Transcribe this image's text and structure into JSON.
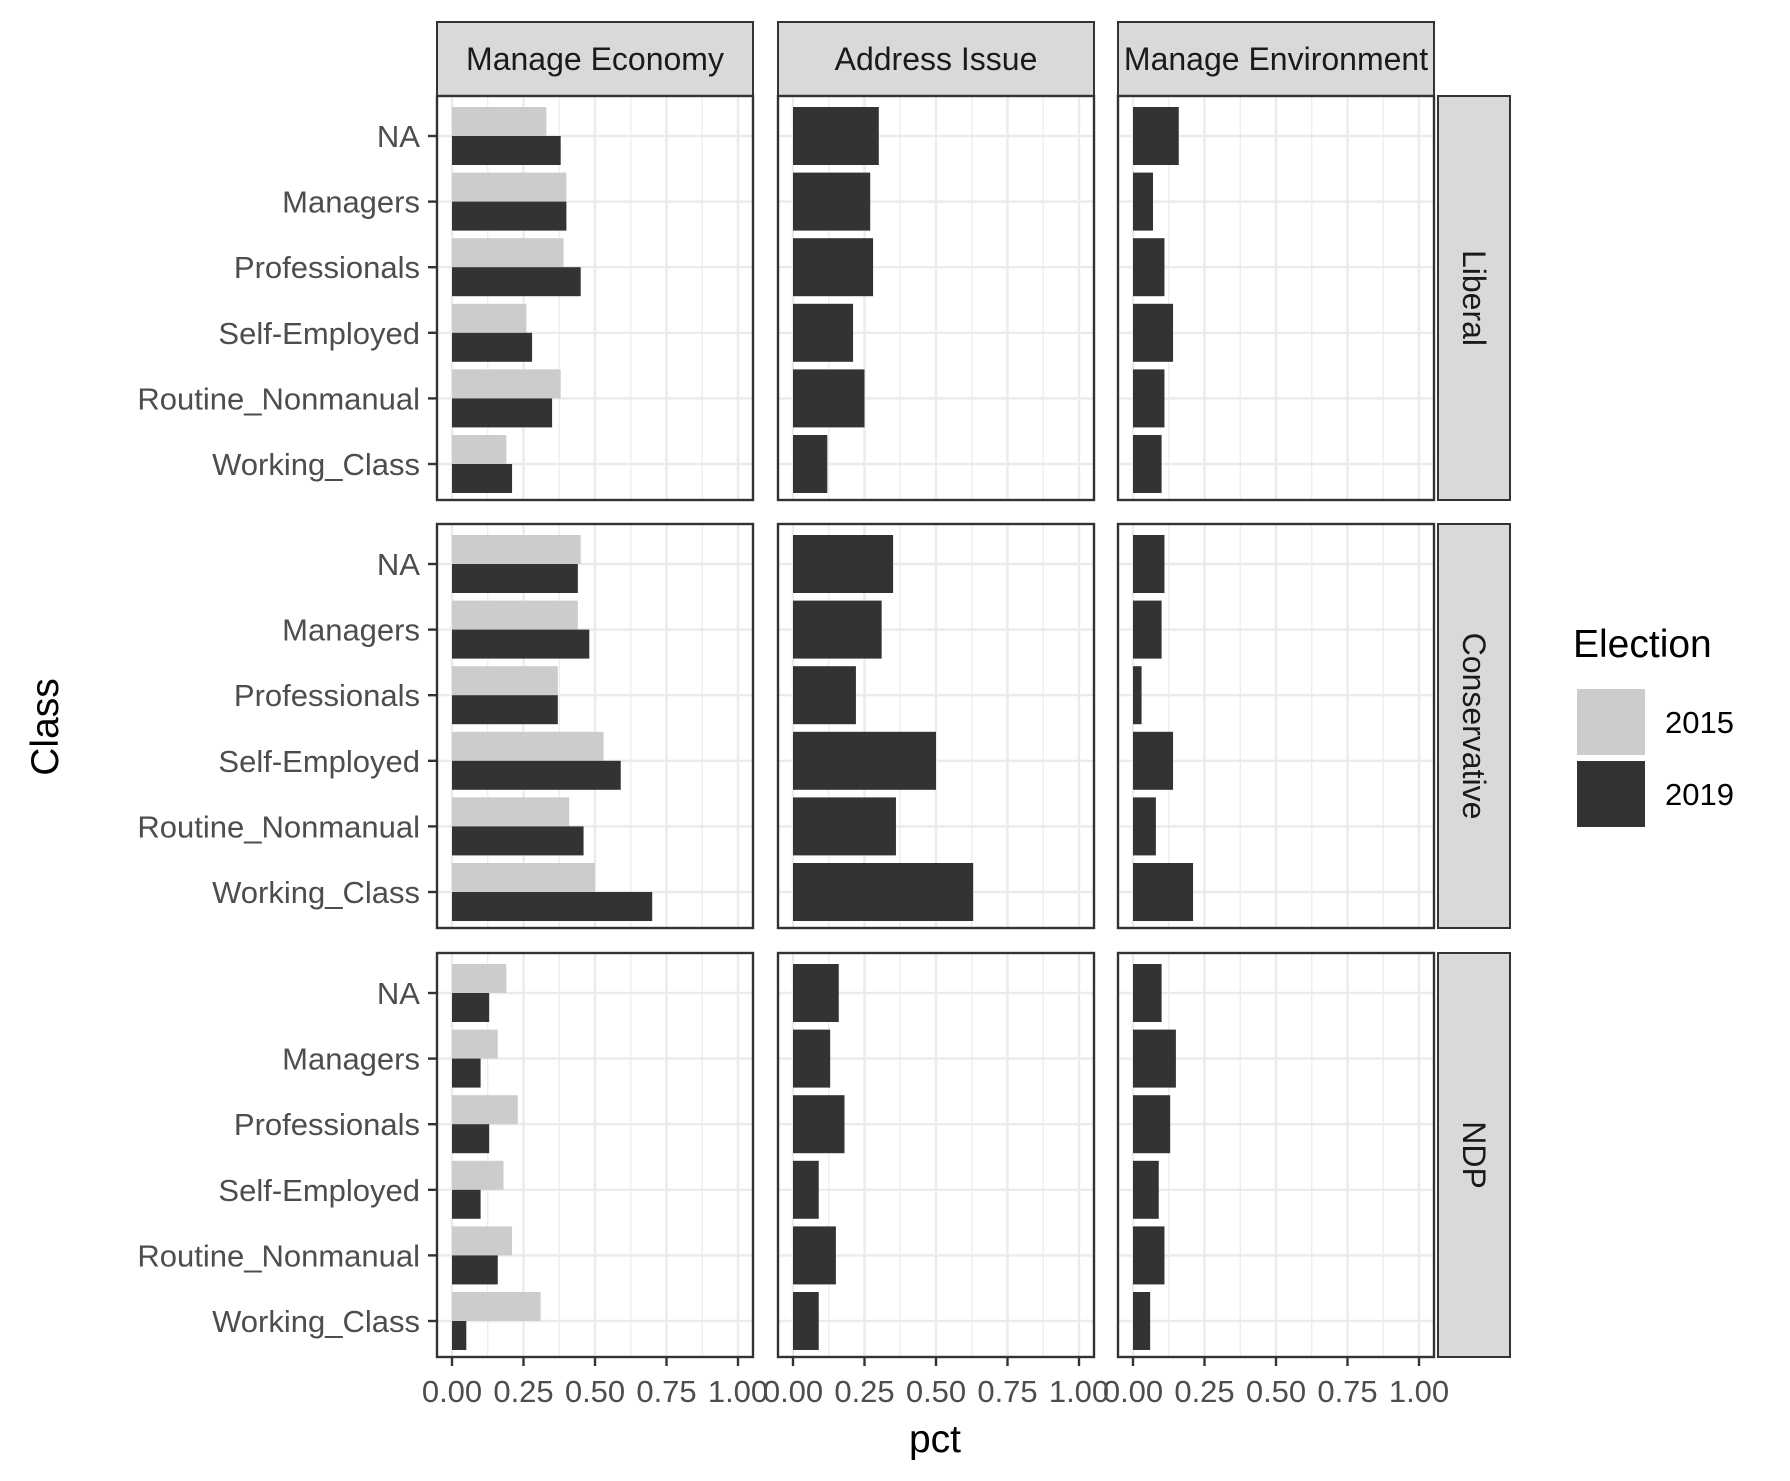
{
  "chart_data": {
    "type": "bar",
    "orientation": "horizontal",
    "facet_columns": [
      "Manage Economy",
      "Address Issue",
      "Manage Environment"
    ],
    "facet_rows": [
      "Liberal",
      "Conservative",
      "NDP"
    ],
    "categories": [
      "NA",
      "Managers",
      "Professionals",
      "Self-Employed",
      "Routine_Nonmanual",
      "Working_Class"
    ],
    "xlabel": "pct",
    "ylabel": "Class",
    "xlim": [
      0,
      1
    ],
    "x_ticks": [
      "0.00",
      "0.25",
      "0.50",
      "0.75",
      "1.00"
    ],
    "grid": true,
    "legend": {
      "title": "Election",
      "position": "right",
      "entries": [
        {
          "name": "2015",
          "color": "#cccccc"
        },
        {
          "name": "2019",
          "color": "#333333"
        }
      ]
    },
    "panels": [
      {
        "row": "Liberal",
        "col": "Manage Economy",
        "series": [
          {
            "name": "2015",
            "values": [
              0.33,
              0.4,
              0.39,
              0.26,
              0.38,
              0.19
            ]
          },
          {
            "name": "2019",
            "values": [
              0.38,
              0.4,
              0.45,
              0.28,
              0.35,
              0.21
            ]
          }
        ]
      },
      {
        "row": "Liberal",
        "col": "Address Issue",
        "series": [
          {
            "name": "2019",
            "values": [
              0.3,
              0.27,
              0.28,
              0.21,
              0.25,
              0.12
            ]
          }
        ]
      },
      {
        "row": "Liberal",
        "col": "Manage Environment",
        "series": [
          {
            "name": "2019",
            "values": [
              0.16,
              0.07,
              0.11,
              0.14,
              0.11,
              0.1
            ]
          }
        ]
      },
      {
        "row": "Conservative",
        "col": "Manage Economy",
        "series": [
          {
            "name": "2015",
            "values": [
              0.45,
              0.44,
              0.37,
              0.53,
              0.41,
              0.5
            ]
          },
          {
            "name": "2019",
            "values": [
              0.44,
              0.48,
              0.37,
              0.59,
              0.46,
              0.7
            ]
          }
        ]
      },
      {
        "row": "Conservative",
        "col": "Address Issue",
        "series": [
          {
            "name": "2019",
            "values": [
              0.35,
              0.31,
              0.22,
              0.5,
              0.36,
              0.63
            ]
          }
        ]
      },
      {
        "row": "Conservative",
        "col": "Manage Environment",
        "series": [
          {
            "name": "2019",
            "values": [
              0.11,
              0.1,
              0.03,
              0.14,
              0.08,
              0.21
            ]
          }
        ]
      },
      {
        "row": "NDP",
        "col": "Manage Economy",
        "series": [
          {
            "name": "2015",
            "values": [
              0.19,
              0.16,
              0.23,
              0.18,
              0.21,
              0.31
            ]
          },
          {
            "name": "2019",
            "values": [
              0.13,
              0.1,
              0.13,
              0.1,
              0.16,
              0.05
            ]
          }
        ]
      },
      {
        "row": "NDP",
        "col": "Address Issue",
        "series": [
          {
            "name": "2019",
            "values": [
              0.16,
              0.13,
              0.18,
              0.09,
              0.15,
              0.09
            ]
          }
        ]
      },
      {
        "row": "NDP",
        "col": "Manage Environment",
        "series": [
          {
            "name": "2019",
            "values": [
              0.1,
              0.15,
              0.13,
              0.09,
              0.11,
              0.06
            ]
          }
        ]
      }
    ]
  }
}
